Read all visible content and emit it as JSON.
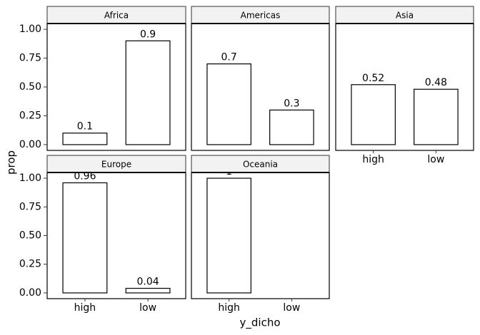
{
  "ylabel": "prop",
  "xlabel": "y_dicho",
  "chart_data": [
    {
      "type": "bar",
      "title": "Africa",
      "categories": [
        "high",
        "low"
      ],
      "values": [
        0.1,
        0.9
      ],
      "ylim": [
        -0.05,
        1.05
      ],
      "yticks": [
        {
          "value": 0,
          "label": "0.00"
        },
        {
          "value": 0.25,
          "label": "0.25"
        },
        {
          "value": 0.5,
          "label": "0.50"
        },
        {
          "value": 0.75,
          "label": "0.75"
        },
        {
          "value": 1,
          "label": "1.00"
        }
      ]
    },
    {
      "type": "bar",
      "title": "Americas",
      "categories": [
        "high",
        "low"
      ],
      "values": [
        0.7,
        0.3
      ],
      "ylim": [
        -0.05,
        1.05
      ]
    },
    {
      "type": "bar",
      "title": "Asia",
      "categories": [
        "high",
        "low"
      ],
      "values": [
        0.52,
        0.48
      ],
      "ylim": [
        -0.05,
        1.05
      ]
    },
    {
      "type": "bar",
      "title": "Europe",
      "categories": [
        "high",
        "low"
      ],
      "values": [
        0.96,
        0.04
      ],
      "ylim": [
        -0.05,
        1.05
      ],
      "yticks": [
        {
          "value": 0,
          "label": "0.00"
        },
        {
          "value": 0.25,
          "label": "0.25"
        },
        {
          "value": 0.5,
          "label": "0.50"
        },
        {
          "value": 0.75,
          "label": "0.75"
        },
        {
          "value": 1,
          "label": "1.00"
        }
      ]
    },
    {
      "type": "bar",
      "title": "Oceania",
      "categories": [
        "high",
        "low"
      ],
      "values": [
        1,
        null
      ],
      "ylim": [
        -0.05,
        1.05
      ]
    }
  ]
}
